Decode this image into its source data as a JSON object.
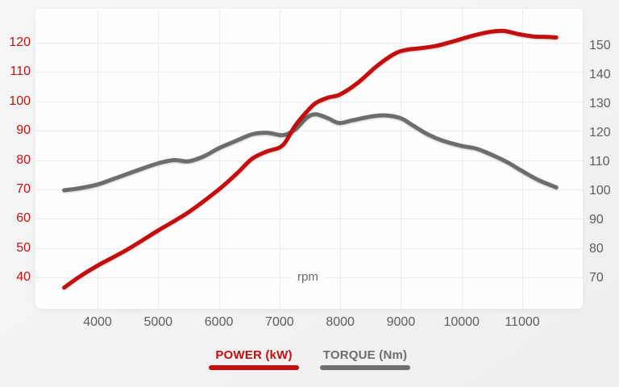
{
  "labels": {
    "x_axis_unit": "rpm"
  },
  "colors": {
    "power": "#c40e0e",
    "torque": "#6d6d6d",
    "grid": "#ececec",
    "axis_text": "#5e5e5e",
    "panel_bg": "#fefefe",
    "page_bg": "#f3f3f4"
  },
  "chart_data": {
    "type": "line",
    "title": "",
    "xlabel": "rpm",
    "grid": true,
    "x_axis": {
      "label": "rpm",
      "ticks": [
        4000,
        5000,
        6000,
        7000,
        8000,
        9000,
        10000,
        11000
      ],
      "range": [
        3350,
        11650
      ]
    },
    "left_axis": {
      "name": "POWER (kW)",
      "ticks": [
        40,
        50,
        60,
        70,
        80,
        90,
        100,
        110,
        120
      ],
      "range_at_gridlines": [
        40,
        120
      ],
      "color": "#c40e0e"
    },
    "right_axis": {
      "name": "TORQUE (Nm)",
      "ticks": [
        70,
        80,
        90,
        100,
        110,
        120,
        130,
        140,
        150
      ],
      "range_at_gridlines": [
        70,
        150
      ],
      "color": "#6d6d6d"
    },
    "legend": {
      "position": "bottom",
      "items": [
        {
          "label": "POWER (kW)",
          "color": "#c40e0e"
        },
        {
          "label": "TORQUE (Nm)",
          "color": "#6d6d6d"
        }
      ]
    },
    "series": [
      {
        "name": "POWER (kW)",
        "axis": "left",
        "unit": "kW",
        "color": "#c40e0e",
        "points": [
          [
            3450,
            36.5
          ],
          [
            3700,
            40.2
          ],
          [
            4000,
            44
          ],
          [
            4500,
            49.6
          ],
          [
            5000,
            56
          ],
          [
            5500,
            62.2
          ],
          [
            6000,
            70
          ],
          [
            6300,
            75.5
          ],
          [
            6550,
            80.5
          ],
          [
            6800,
            83
          ],
          [
            7050,
            85
          ],
          [
            7250,
            91.5
          ],
          [
            7450,
            96.5
          ],
          [
            7600,
            99.5
          ],
          [
            7800,
            101.3
          ],
          [
            8000,
            102.4
          ],
          [
            8300,
            106.5
          ],
          [
            8600,
            112
          ],
          [
            8900,
            116.3
          ],
          [
            9100,
            117.6
          ],
          [
            9350,
            118.2
          ],
          [
            9600,
            119
          ],
          [
            9900,
            120.7
          ],
          [
            10200,
            122.5
          ],
          [
            10500,
            123.8
          ],
          [
            10700,
            124
          ],
          [
            10950,
            122.9
          ],
          [
            11200,
            122.1
          ],
          [
            11400,
            122
          ],
          [
            11560,
            121.8
          ]
        ]
      },
      {
        "name": "TORQUE (Nm)",
        "axis": "right",
        "unit": "Nm",
        "color": "#6d6d6d",
        "points": [
          [
            3450,
            100
          ],
          [
            3700,
            100.7
          ],
          [
            4000,
            102
          ],
          [
            4300,
            104.2
          ],
          [
            4700,
            107.2
          ],
          [
            5000,
            109.3
          ],
          [
            5250,
            110.4
          ],
          [
            5500,
            110
          ],
          [
            5750,
            111.7
          ],
          [
            6000,
            114.5
          ],
          [
            6300,
            117.2
          ],
          [
            6550,
            119.3
          ],
          [
            6800,
            119.8
          ],
          [
            7050,
            119
          ],
          [
            7250,
            120.8
          ],
          [
            7450,
            125
          ],
          [
            7600,
            126.2
          ],
          [
            7800,
            124.8
          ],
          [
            7980,
            123.2
          ],
          [
            8200,
            124.1
          ],
          [
            8500,
            125.4
          ],
          [
            8750,
            125.8
          ],
          [
            9000,
            124.8
          ],
          [
            9200,
            122.3
          ],
          [
            9450,
            119.2
          ],
          [
            9700,
            117
          ],
          [
            10000,
            115.3
          ],
          [
            10250,
            114.3
          ],
          [
            10500,
            112.2
          ],
          [
            10750,
            109.7
          ],
          [
            11000,
            106.6
          ],
          [
            11250,
            103.7
          ],
          [
            11560,
            101
          ]
        ]
      }
    ]
  }
}
